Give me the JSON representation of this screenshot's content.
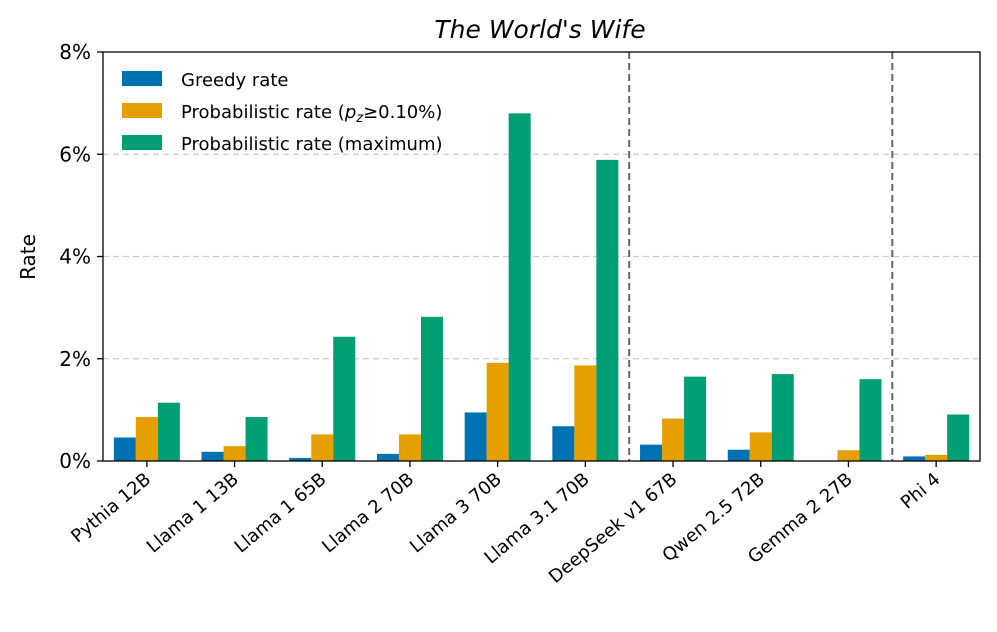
{
  "chart_data": {
    "type": "bar",
    "title": "The World's Wife",
    "xlabel": "",
    "ylabel": "Rate",
    "ylim": [
      0,
      0.08
    ],
    "yticks": [
      0,
      0.02,
      0.04,
      0.06,
      0.08
    ],
    "ytick_labels": [
      "0%",
      "2%",
      "4%",
      "6%",
      "8%"
    ],
    "grid": "horizontal dashed",
    "legend_position": "top-left",
    "categories": [
      "Pythia 12B",
      "Llama 1 13B",
      "Llama 1 65B",
      "Llama 2 70B",
      "Llama 3 70B",
      "Llama 3.1 70B",
      "DeepSeek v1 67B",
      "Qwen 2.5 72B",
      "Gemma 2 27B",
      "Phi 4"
    ],
    "group_separators_after": [
      5,
      8
    ],
    "series": [
      {
        "name": "Greedy rate",
        "color": "#0072B2",
        "values": [
          0.0046,
          0.0018,
          0.0006,
          0.0014,
          0.0095,
          0.0068,
          0.0032,
          0.0022,
          0.0,
          0.0009
        ]
      },
      {
        "name": "Probabilistic rate (p_z≥0.10%)",
        "color": "#E69F00",
        "values": [
          0.0086,
          0.0029,
          0.0052,
          0.0052,
          0.0192,
          0.0187,
          0.0083,
          0.0056,
          0.0021,
          0.0012
        ]
      },
      {
        "name": "Probabilistic rate (maximum)",
        "color": "#009E73",
        "values": [
          0.0114,
          0.0086,
          0.0243,
          0.0282,
          0.068,
          0.0589,
          0.0165,
          0.017,
          0.016,
          0.0091
        ]
      }
    ],
    "legend_labels": [
      {
        "prefix": "Greedy rate",
        "var": "",
        "sub": "",
        "suffix": ""
      },
      {
        "prefix": "Probabilistic rate (",
        "var": "p",
        "sub": "z",
        "suffix": "≥0.10%)"
      },
      {
        "prefix": "Probabilistic rate (maximum)",
        "var": "",
        "sub": "",
        "suffix": ""
      }
    ]
  }
}
